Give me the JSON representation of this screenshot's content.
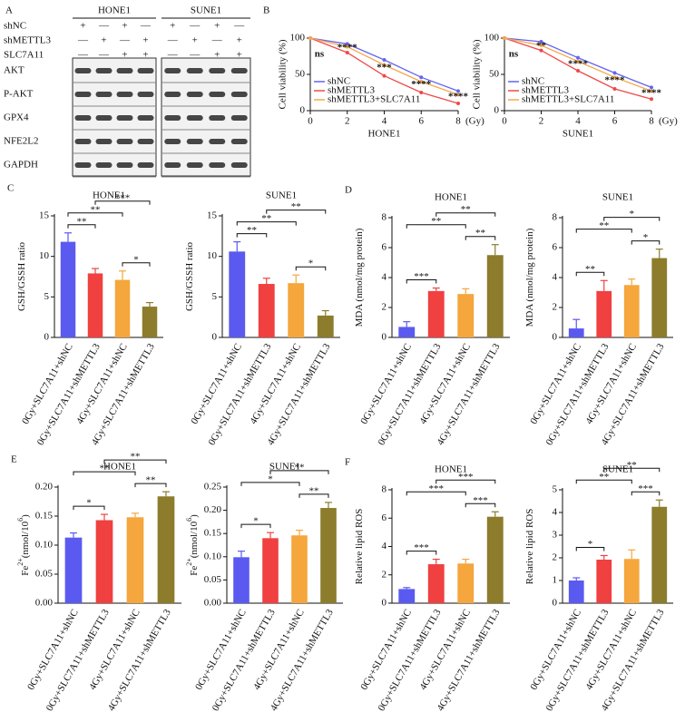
{
  "blot": {
    "panel": "A",
    "groups": [
      "HONE1",
      "SUNE1"
    ],
    "conditions": [
      {
        "name": "shNC",
        "signs": [
          "+",
          "—",
          "+",
          "—",
          "+",
          "—",
          "+",
          "—"
        ]
      },
      {
        "name": "shMETTL3",
        "signs": [
          "—",
          "+",
          "—",
          "+",
          "—",
          "+",
          "—",
          "+"
        ]
      },
      {
        "name": "SLC7A11",
        "signs": [
          "—",
          "—",
          "+",
          "+",
          "—",
          "—",
          "+",
          "+"
        ]
      }
    ],
    "proteins": [
      "AKT",
      "P-AKT",
      "GPX4",
      "NFE2L2",
      "GAPDH"
    ]
  },
  "chart_data": [
    {
      "type": "line",
      "panel": "B",
      "xlabel": "HONE1",
      "x_unit": "(Gy)",
      "ylabel": "Cell viability (%)",
      "x": [
        0,
        2,
        4,
        6,
        8
      ],
      "xlim": [
        0,
        8
      ],
      "xticks": [
        0,
        2,
        4,
        6,
        8
      ],
      "ylim": [
        0,
        100
      ],
      "yticks": [
        0,
        50,
        100
      ],
      "series": [
        {
          "name": "shNC",
          "color": "#6464f0",
          "values": [
            100,
            92,
            70,
            46,
            27
          ]
        },
        {
          "name": "shMETTL3",
          "color": "#f04848",
          "values": [
            100,
            80,
            48,
            25,
            10
          ]
        },
        {
          "name": "shMETTL3+SLC7A11",
          "color": "#f5a84a",
          "values": [
            100,
            88,
            63,
            40,
            22
          ]
        }
      ],
      "annotations": [
        {
          "x": 0,
          "text": "ns"
        },
        {
          "x": 2,
          "text": "****"
        },
        {
          "x": 4,
          "text": "***"
        },
        {
          "x": 6,
          "text": "****"
        },
        {
          "x": 8,
          "text": "****"
        }
      ]
    },
    {
      "type": "line",
      "xlabel": "SUNE1",
      "x_unit": "(Gy)",
      "ylabel": "Cell viability (%)",
      "x": [
        0,
        2,
        4,
        6,
        8
      ],
      "xlim": [
        0,
        8
      ],
      "xticks": [
        0,
        2,
        4,
        6,
        8
      ],
      "ylim": [
        0,
        100
      ],
      "yticks": [
        0,
        50,
        100
      ],
      "series": [
        {
          "name": "shNC",
          "color": "#6464f0",
          "values": [
            100,
            95,
            73,
            52,
            32
          ]
        },
        {
          "name": "shMETTL3",
          "color": "#f04848",
          "values": [
            100,
            83,
            55,
            30,
            16
          ]
        },
        {
          "name": "shMETTL3+SLC7A11",
          "color": "#f5a84a",
          "values": [
            100,
            90,
            68,
            46,
            27
          ]
        }
      ],
      "annotations": [
        {
          "x": 0,
          "text": "ns"
        },
        {
          "x": 2,
          "text": "**"
        },
        {
          "x": 4,
          "text": "****"
        },
        {
          "x": 6,
          "text": "****"
        },
        {
          "x": 8,
          "text": "****"
        }
      ]
    },
    {
      "type": "bar",
      "panel": "C",
      "title": "HONE1",
      "ylabel": [
        {
          "text": "GSH/GSSH ratio"
        }
      ],
      "categories": [
        "0Gy+SLC7A11+shNC",
        "0Gy+SLC7A11+shMETTL3",
        "4Gy+SLC7A11+shNC",
        "4Gy+SLC7A11+shMETTL3"
      ],
      "values": [
        11.8,
        7.9,
        7.1,
        3.8
      ],
      "errors": [
        1.1,
        0.6,
        1.1,
        0.5
      ],
      "colors": [
        "#5a5af0",
        "#f04040",
        "#f5a63c",
        "#8c7c2c"
      ],
      "ylim": [
        0,
        15
      ],
      "yticks": [
        0,
        5,
        10,
        15
      ],
      "comparisons": [
        {
          "from": 0,
          "to": 1,
          "label": "**"
        },
        {
          "from": 0,
          "to": 2,
          "label": "**"
        },
        {
          "from": 1,
          "to": 3,
          "label": "***"
        },
        {
          "from": 2,
          "to": 3,
          "label": "*"
        }
      ]
    },
    {
      "type": "bar",
      "title": "SUNE1",
      "ylabel": [
        {
          "text": "GSH/GSSH ratio"
        }
      ],
      "categories": [
        "0Gy+SLC7A11+shNC",
        "0Gy+SLC7A11+shMETTL3",
        "4Gy+SLC7A11+shNC",
        "4Gy+SLC7A11+shMETTL3"
      ],
      "values": [
        10.6,
        6.6,
        6.7,
        2.7
      ],
      "errors": [
        1.2,
        0.7,
        1.0,
        0.6
      ],
      "colors": [
        "#5a5af0",
        "#f04040",
        "#f5a63c",
        "#8c7c2c"
      ],
      "ylim": [
        0,
        15
      ],
      "yticks": [
        0,
        5,
        10,
        15
      ],
      "comparisons": [
        {
          "from": 0,
          "to": 1,
          "label": "**"
        },
        {
          "from": 0,
          "to": 2,
          "label": "**"
        },
        {
          "from": 1,
          "to": 3,
          "label": "**"
        },
        {
          "from": 2,
          "to": 3,
          "label": "*"
        }
      ]
    },
    {
      "type": "bar",
      "panel": "D",
      "title": "HONE1",
      "ylabel": [
        {
          "text": "MDA (nmol/mg protein)"
        }
      ],
      "categories": [
        "0Gy+SLC7A11+shNC",
        "0Gy+SLC7A11+shMETTL3",
        "4Gy+SLC7A11+shNC",
        "4Gy+SLC7A11+shMETTL3"
      ],
      "values": [
        0.7,
        3.1,
        2.9,
        5.5
      ],
      "errors": [
        0.35,
        0.2,
        0.35,
        0.7
      ],
      "colors": [
        "#5a5af0",
        "#f04040",
        "#f5a63c",
        "#8c7c2c"
      ],
      "ylim": [
        0,
        8
      ],
      "yticks": [
        0,
        2,
        4,
        6,
        8
      ],
      "comparisons": [
        {
          "from": 0,
          "to": 1,
          "label": "***"
        },
        {
          "from": 0,
          "to": 2,
          "label": "**"
        },
        {
          "from": 1,
          "to": 3,
          "label": "**"
        },
        {
          "from": 2,
          "to": 3,
          "label": "**"
        }
      ]
    },
    {
      "type": "bar",
      "title": "SUNE1",
      "ylabel": [
        {
          "text": "MDA (nmol/mg protein)"
        }
      ],
      "categories": [
        "0Gy+SLC7A11+shNC",
        "0Gy+SLC7A11+shMETTL3",
        "4Gy+SLC7A11+shNC",
        "4Gy+SLC7A11+shMETTL3"
      ],
      "values": [
        0.6,
        3.1,
        3.5,
        5.3
      ],
      "errors": [
        0.6,
        0.7,
        0.4,
        0.6
      ],
      "colors": [
        "#5a5af0",
        "#f04040",
        "#f5a63c",
        "#8c7c2c"
      ],
      "ylim": [
        0,
        8
      ],
      "yticks": [
        0,
        2,
        4,
        6,
        8
      ],
      "comparisons": [
        {
          "from": 0,
          "to": 1,
          "label": "**"
        },
        {
          "from": 0,
          "to": 2,
          "label": "**"
        },
        {
          "from": 1,
          "to": 3,
          "label": "*"
        },
        {
          "from": 2,
          "to": 3,
          "label": "*"
        }
      ]
    },
    {
      "type": "bar",
      "panel": "E",
      "title": "HONE1",
      "ylabel": [
        {
          "text": "Fe"
        },
        {
          "text": "2+",
          "sup": true
        },
        {
          "text": "(nmol/10"
        },
        {
          "text": "6",
          "sup": true
        },
        {
          "text": ")"
        }
      ],
      "categories": [
        "0Gy+SLC7A11+shNC",
        "0Gy+SLC7A11+shMETTL3",
        "4Gy+SLC7A11+shNC",
        "4Gy+SLC7A11+shMETTL3"
      ],
      "values": [
        0.113,
        0.143,
        0.148,
        0.184
      ],
      "errors": [
        0.008,
        0.01,
        0.007,
        0.008
      ],
      "colors": [
        "#5a5af0",
        "#f04040",
        "#f5a63c",
        "#8c7c2c"
      ],
      "ylim": [
        0,
        0.2
      ],
      "yticks": [
        {
          "value": 0,
          "label": "0.00"
        },
        0.05,
        {
          "value": 0.1,
          "label": "0.10"
        },
        0.15,
        {
          "value": 0.2,
          "label": "0.20"
        }
      ],
      "comparisons": [
        {
          "from": 0,
          "to": 1,
          "label": "*"
        },
        {
          "from": 0,
          "to": 2,
          "label": "**"
        },
        {
          "from": 1,
          "to": 3,
          "label": "**"
        },
        {
          "from": 2,
          "to": 3,
          "label": "**"
        }
      ]
    },
    {
      "type": "bar",
      "title": "SUNE1",
      "ylabel": [
        {
          "text": "Fe"
        },
        {
          "text": "2+",
          "sup": true
        },
        {
          "text": "(nmol/10"
        },
        {
          "text": "6",
          "sup": true
        },
        {
          "text": ")"
        }
      ],
      "categories": [
        "0Gy+SLC7A11+shNC",
        "0Gy+SLC7A11+shMETTL3",
        "4Gy+SLC7A11+shNC",
        "4Gy+SLC7A11+shMETTL3"
      ],
      "values": [
        0.099,
        0.14,
        0.146,
        0.205
      ],
      "errors": [
        0.013,
        0.012,
        0.011,
        0.012
      ],
      "colors": [
        "#5a5af0",
        "#f04040",
        "#f5a63c",
        "#8c7c2c"
      ],
      "ylim": [
        0,
        0.25
      ],
      "yticks": [
        {
          "value": 0,
          "label": "0.00"
        },
        0.05,
        {
          "value": 0.1,
          "label": "0.10"
        },
        0.15,
        {
          "value": 0.2,
          "label": "0.20"
        },
        0.25
      ],
      "comparisons": [
        {
          "from": 0,
          "to": 1,
          "label": "*"
        },
        {
          "from": 0,
          "to": 2,
          "label": "*"
        },
        {
          "from": 1,
          "to": 3,
          "label": "**"
        },
        {
          "from": 2,
          "to": 3,
          "label": "**"
        }
      ]
    },
    {
      "type": "bar",
      "panel": "F",
      "title": "HONE1",
      "ylabel": [
        {
          "text": "Relative lipid ROS"
        }
      ],
      "categories": [
        "0Gy+SLC7A11+shNC",
        "0Gy+SLC7A11+shMETTL3",
        "4Gy+SLC7A11+shNC",
        "4Gy+SLC7A11+shMETTL3"
      ],
      "values": [
        1.0,
        2.75,
        2.8,
        6.1
      ],
      "errors": [
        0.1,
        0.35,
        0.3,
        0.35
      ],
      "colors": [
        "#5a5af0",
        "#f04040",
        "#f5a63c",
        "#8c7c2c"
      ],
      "ylim": [
        0,
        8
      ],
      "yticks": [
        0,
        2,
        4,
        6,
        8
      ],
      "comparisons": [
        {
          "from": 0,
          "to": 1,
          "label": "***"
        },
        {
          "from": 0,
          "to": 2,
          "label": "***"
        },
        {
          "from": 1,
          "to": 3,
          "label": "***"
        },
        {
          "from": 2,
          "to": 3,
          "label": "***"
        }
      ]
    },
    {
      "type": "bar",
      "title": "SUNE1",
      "ylabel": [
        {
          "text": "Relative lipid ROS"
        }
      ],
      "categories": [
        "0Gy+SLC7A11+shNC",
        "0Gy+SLC7A11+shMETTL3",
        "4Gy+SLC7A11+shNC",
        "4Gy+SLC7A11+shMETTL3"
      ],
      "values": [
        1.0,
        1.92,
        1.95,
        4.25
      ],
      "errors": [
        0.12,
        0.18,
        0.4,
        0.3
      ],
      "colors": [
        "#5a5af0",
        "#f04040",
        "#f5a63c",
        "#8c7c2c"
      ],
      "ylim": [
        0,
        5
      ],
      "yticks": [
        0,
        1,
        2,
        3,
        4,
        5
      ],
      "comparisons": [
        {
          "from": 0,
          "to": 1,
          "label": "*"
        },
        {
          "from": 0,
          "to": 2,
          "label": "**"
        },
        {
          "from": 1,
          "to": 3,
          "label": "**"
        },
        {
          "from": 2,
          "to": 3,
          "label": "***"
        }
      ]
    }
  ]
}
